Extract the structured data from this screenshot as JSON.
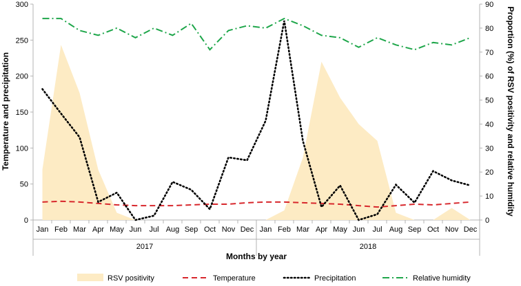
{
  "chart_data": {
    "type": "combo",
    "xlabel": "Months by year",
    "ylabel_left": "Temperature and precipitation",
    "ylabel_right": "Proportion (%) of RSV positivity and relative humidity",
    "ylim_left": [
      0,
      300
    ],
    "ylim_right": [
      0,
      90
    ],
    "yticks_left": [
      "0",
      "50",
      "100",
      "150",
      "200",
      "250",
      "300"
    ],
    "yticks_right": [
      "0",
      "10",
      "20",
      "30",
      "40",
      "50",
      "60",
      "70",
      "80",
      "90"
    ],
    "years": [
      "2017",
      "2018"
    ],
    "categories": [
      "Jan",
      "Feb",
      "Mar",
      "Apr",
      "May",
      "Jun",
      "Jul",
      "Aug",
      "Sep",
      "Oct",
      "Nov",
      "Dec",
      "Jan",
      "Feb",
      "Mar",
      "Apr",
      "May",
      "Jun",
      "Jul",
      "Aug",
      "Sep",
      "Oct",
      "Nov",
      "Dec"
    ],
    "series": [
      {
        "name": "RSV positivity",
        "axis": "right",
        "style": "area",
        "color": "#fdebc4",
        "values": [
          21,
          73,
          53,
          21,
          3,
          0,
          0,
          0,
          0,
          0,
          0,
          0,
          0,
          4,
          26,
          66,
          51,
          40,
          33,
          3,
          0,
          0,
          5,
          0
        ]
      },
      {
        "name": "Temperature",
        "axis": "left",
        "style": "dashed",
        "color": "#d7262b",
        "values": [
          25,
          26,
          25,
          23,
          21,
          20,
          20,
          20,
          21,
          22,
          22,
          24,
          25,
          25,
          24,
          23,
          22,
          20,
          18,
          20,
          22,
          21,
          23,
          25
        ]
      },
      {
        "name": "Precipitation",
        "axis": "left",
        "style": "dotted",
        "color": "#000000",
        "values": [
          182,
          148,
          115,
          25,
          38,
          0,
          6,
          53,
          42,
          15,
          87,
          83,
          138,
          277,
          110,
          18,
          48,
          0,
          8,
          49,
          24,
          68,
          55,
          48
        ]
      },
      {
        "name": "Relative humidity",
        "axis": "right",
        "style": "dashdot",
        "color": "#1ea64a",
        "values": [
          84,
          84,
          79,
          77,
          80,
          76,
          80,
          77,
          82,
          71,
          79,
          81,
          80,
          84,
          81,
          77,
          76,
          72,
          76,
          73,
          71,
          74,
          73,
          76
        ]
      }
    ]
  }
}
